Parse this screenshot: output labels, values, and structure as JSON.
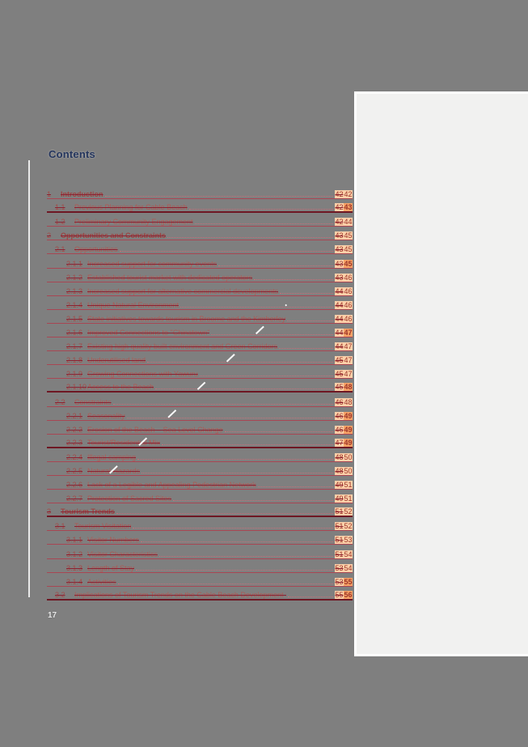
{
  "page": {
    "background": "#7f7f7f",
    "footer_page_number": "17"
  },
  "heading": {
    "title": "Contents"
  },
  "colors": {
    "heading_text": "#24355d",
    "toc_text": "#ad5a55",
    "rule_red": "#be283c",
    "rule_dark": "#6e1723",
    "page_number_highlight": "#fbd0a9",
    "page_number_highlight_strong": "#f6a367",
    "next_page_fill": "#f1f1f0"
  },
  "toc": {
    "entries": [
      {
        "num": "1",
        "title": "Introduction",
        "level": 1,
        "page_old": "42",
        "page_new": "42",
        "thick": false,
        "hot": false
      },
      {
        "num": "1.1",
        "title": "Previous Planning for Cable Beach",
        "level": 2,
        "page_old": "42",
        "page_new": "43",
        "thick": true,
        "hot": true
      },
      {
        "num": "1.2",
        "title": "Preliminary Community Engagement",
        "level": 2,
        "page_old": "42",
        "page_new": "44",
        "thick": false,
        "hot": false
      },
      {
        "num": "2",
        "title": "Opportunities and Constraints",
        "level": 1,
        "page_old": "43",
        "page_new": "45",
        "thick": false,
        "hot": false
      },
      {
        "num": "2.1",
        "title": "Opportunities",
        "level": 2,
        "page_old": "43",
        "page_new": "45",
        "thick": false,
        "hot": false
      },
      {
        "num": "2.1.1",
        "title": "Increased support for community events",
        "level": 3,
        "page_old": "43",
        "page_new": "45",
        "thick": false,
        "hot": true
      },
      {
        "num": "2.1.2",
        "title": "Established tourist market with dedicated operators",
        "level": 3,
        "page_old": "43",
        "page_new": "46",
        "thick": false,
        "hot": false
      },
      {
        "num": "2.1.3",
        "title": "Increased support for alternative commercial developments",
        "level": 3,
        "page_old": "44",
        "page_new": "46",
        "thick": false,
        "hot": false
      },
      {
        "num": "2.1.4",
        "title": "Unique Natural Environment",
        "level": 3,
        "page_old": "44",
        "page_new": "46",
        "thick": false,
        "hot": false
      },
      {
        "num": "2.1.5",
        "title": "State initiatives towards tourism in Broome and the Kimberley",
        "level": 3,
        "page_old": "44",
        "page_new": "46",
        "thick": false,
        "hot": false
      },
      {
        "num": "2.1.6",
        "title": "Improved Connections to \"Chinatown\"",
        "level": 3,
        "page_old": "44",
        "page_new": "47",
        "thick": false,
        "hot": true
      },
      {
        "num": "2.1.7",
        "title": "Existing high quality built environment and Green Corridors",
        "level": 3,
        "page_old": "44",
        "page_new": "47",
        "thick": false,
        "hot": false
      },
      {
        "num": "2.1.8",
        "title": "Underutilised land",
        "level": 3,
        "page_old": "45",
        "page_new": "47",
        "thick": false,
        "hot": false
      },
      {
        "num": "2.1.9",
        "title": "Growing Connections with Yawuru",
        "level": 3,
        "page_old": "45",
        "page_new": "47",
        "thick": false,
        "hot": false
      },
      {
        "num": "2.1.10",
        "title": "Access to the Beach",
        "level": 3,
        "page_old": "45",
        "page_new": "48",
        "thick": true,
        "hot": true
      },
      {
        "num": "2.2",
        "title": "Constraints",
        "level": 2,
        "page_old": "46",
        "page_new": "48",
        "thick": false,
        "hot": false
      },
      {
        "num": "2.2.1",
        "title": "Seasonality",
        "level": 3,
        "page_old": "46",
        "page_new": "49",
        "thick": false,
        "hot": true
      },
      {
        "num": "2.2.2",
        "title": "Erosion of the Beach – Sea Level Change",
        "level": 3,
        "page_old": "46",
        "page_new": "49",
        "thick": false,
        "hot": true
      },
      {
        "num": "2.2.3",
        "title": "Tourist/Residential Mix",
        "level": 3,
        "page_old": "47",
        "page_new": "49",
        "thick": true,
        "hot": true
      },
      {
        "num": "2.2.4",
        "title": "Illegal camping",
        "level": 3,
        "page_old": "48",
        "page_new": "50",
        "thick": false,
        "hot": false
      },
      {
        "num": "2.2.5",
        "title": "Natural Hazards",
        "level": 3,
        "page_old": "48",
        "page_new": "50",
        "thick": false,
        "hot": false
      },
      {
        "num": "2.2.6",
        "title": "Lack of a Legible and Appealing Pedestrian Network",
        "level": 3,
        "page_old": "49",
        "page_new": "51",
        "thick": false,
        "hot": false
      },
      {
        "num": "2.2.7",
        "title": "Protection of Sacred Sites",
        "level": 3,
        "page_old": "49",
        "page_new": "51",
        "thick": false,
        "hot": false
      },
      {
        "num": "3",
        "title": "Tourism Trends",
        "level": 1,
        "page_old": "51",
        "page_new": "52",
        "thick": true,
        "hot": false
      },
      {
        "num": "3.1",
        "title": "Tourism Visitation",
        "level": 2,
        "page_old": "51",
        "page_new": "52",
        "thick": false,
        "hot": false
      },
      {
        "num": "3.1.1",
        "title": "Visitor Numbers",
        "level": 3,
        "page_old": "51",
        "page_new": "53",
        "thick": false,
        "hot": false
      },
      {
        "num": "3.1.2",
        "title": "Visitor Characteristics",
        "level": 3,
        "page_old": "51",
        "page_new": "54",
        "thick": false,
        "hot": false
      },
      {
        "num": "3.1.3",
        "title": "Length of Stay",
        "level": 3,
        "page_old": "53",
        "page_new": "54",
        "thick": false,
        "hot": false
      },
      {
        "num": "3.1.4",
        "title": "Activities",
        "level": 3,
        "page_old": "53",
        "page_new": "55",
        "thick": false,
        "hot": true
      },
      {
        "num": "3.2",
        "title": "Implications of Tourism Trends on the Cable Beach Development Strategy",
        "level": 2,
        "page_old": "55",
        "page_new": "56",
        "thick": true,
        "hot": true
      }
    ]
  }
}
